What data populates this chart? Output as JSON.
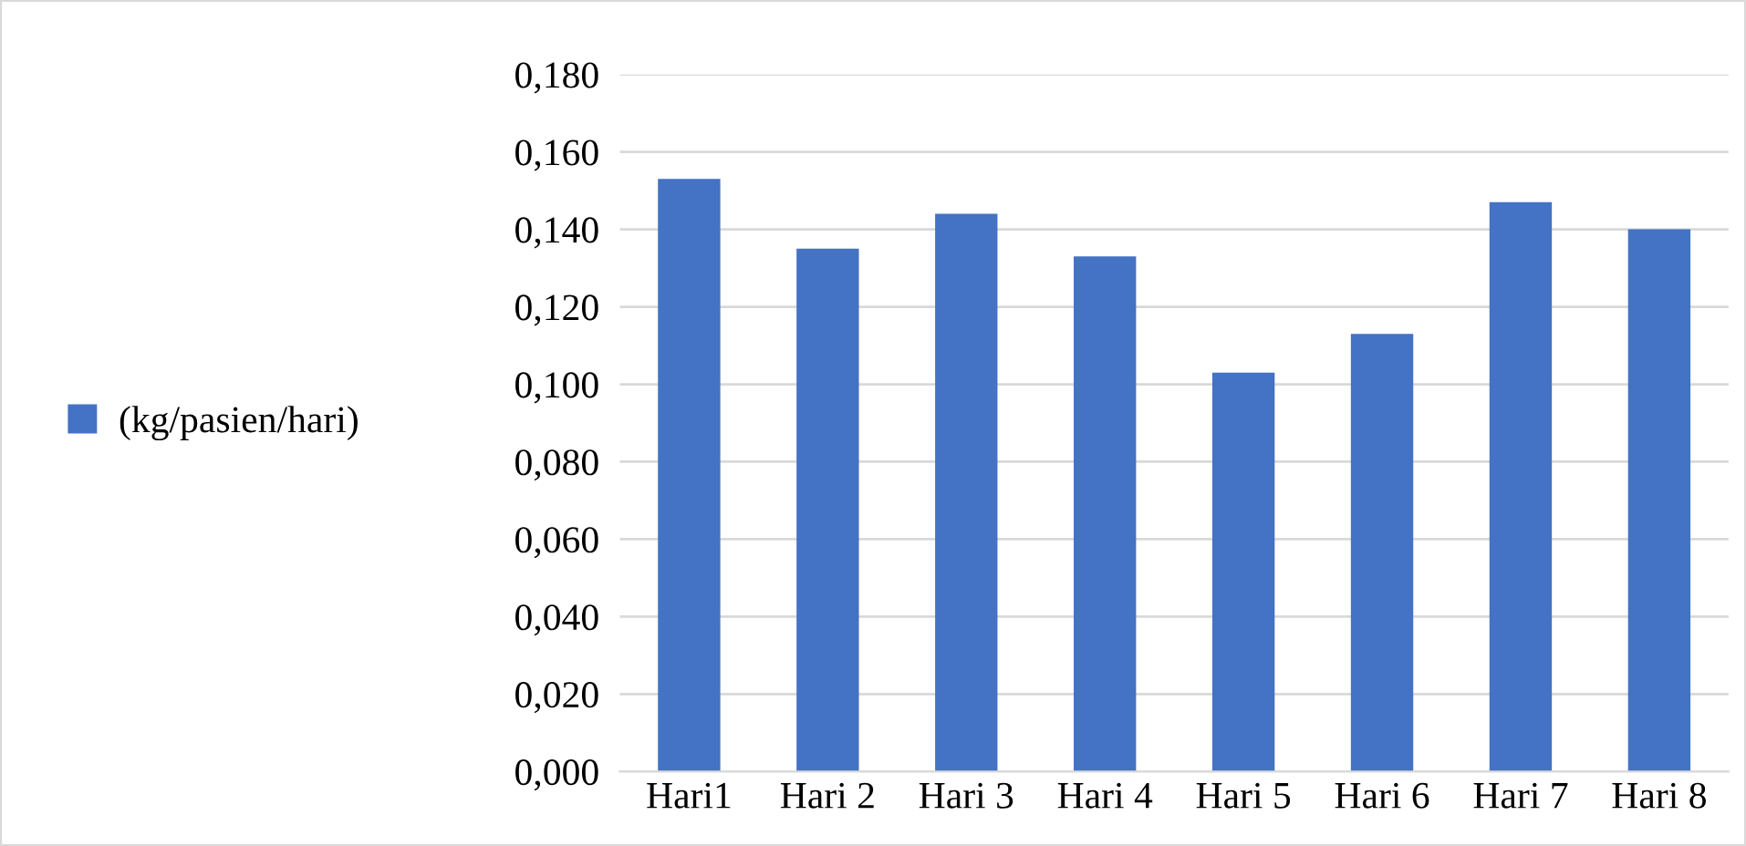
{
  "chart_data": {
    "type": "bar",
    "categories": [
      "Hari1",
      "Hari 2",
      "Hari 3",
      "Hari 4",
      "Hari 5",
      "Hari 6",
      "Hari 7",
      "Hari 8"
    ],
    "series": [
      {
        "name": "(kg/pasien/hari)",
        "color": "#4472c4",
        "values": [
          0.153,
          0.135,
          0.144,
          0.133,
          0.103,
          0.113,
          0.147,
          0.14
        ]
      }
    ],
    "ylim": [
      0,
      0.18
    ],
    "yticks": [
      {
        "value": 0,
        "label": "0,000"
      },
      {
        "value": 0.02,
        "label": "0,020"
      },
      {
        "value": 0.04,
        "label": "0,040"
      },
      {
        "value": 0.06,
        "label": "0,060"
      },
      {
        "value": 0.08,
        "label": "0,080"
      },
      {
        "value": 0.1,
        "label": "0,100"
      },
      {
        "value": 0.12,
        "label": "0,120"
      },
      {
        "value": 0.14,
        "label": "0,140"
      },
      {
        "value": 0.16,
        "label": "0,160"
      },
      {
        "value": 0.18,
        "label": "0,180"
      }
    ],
    "grid": "y",
    "legend": "left"
  }
}
